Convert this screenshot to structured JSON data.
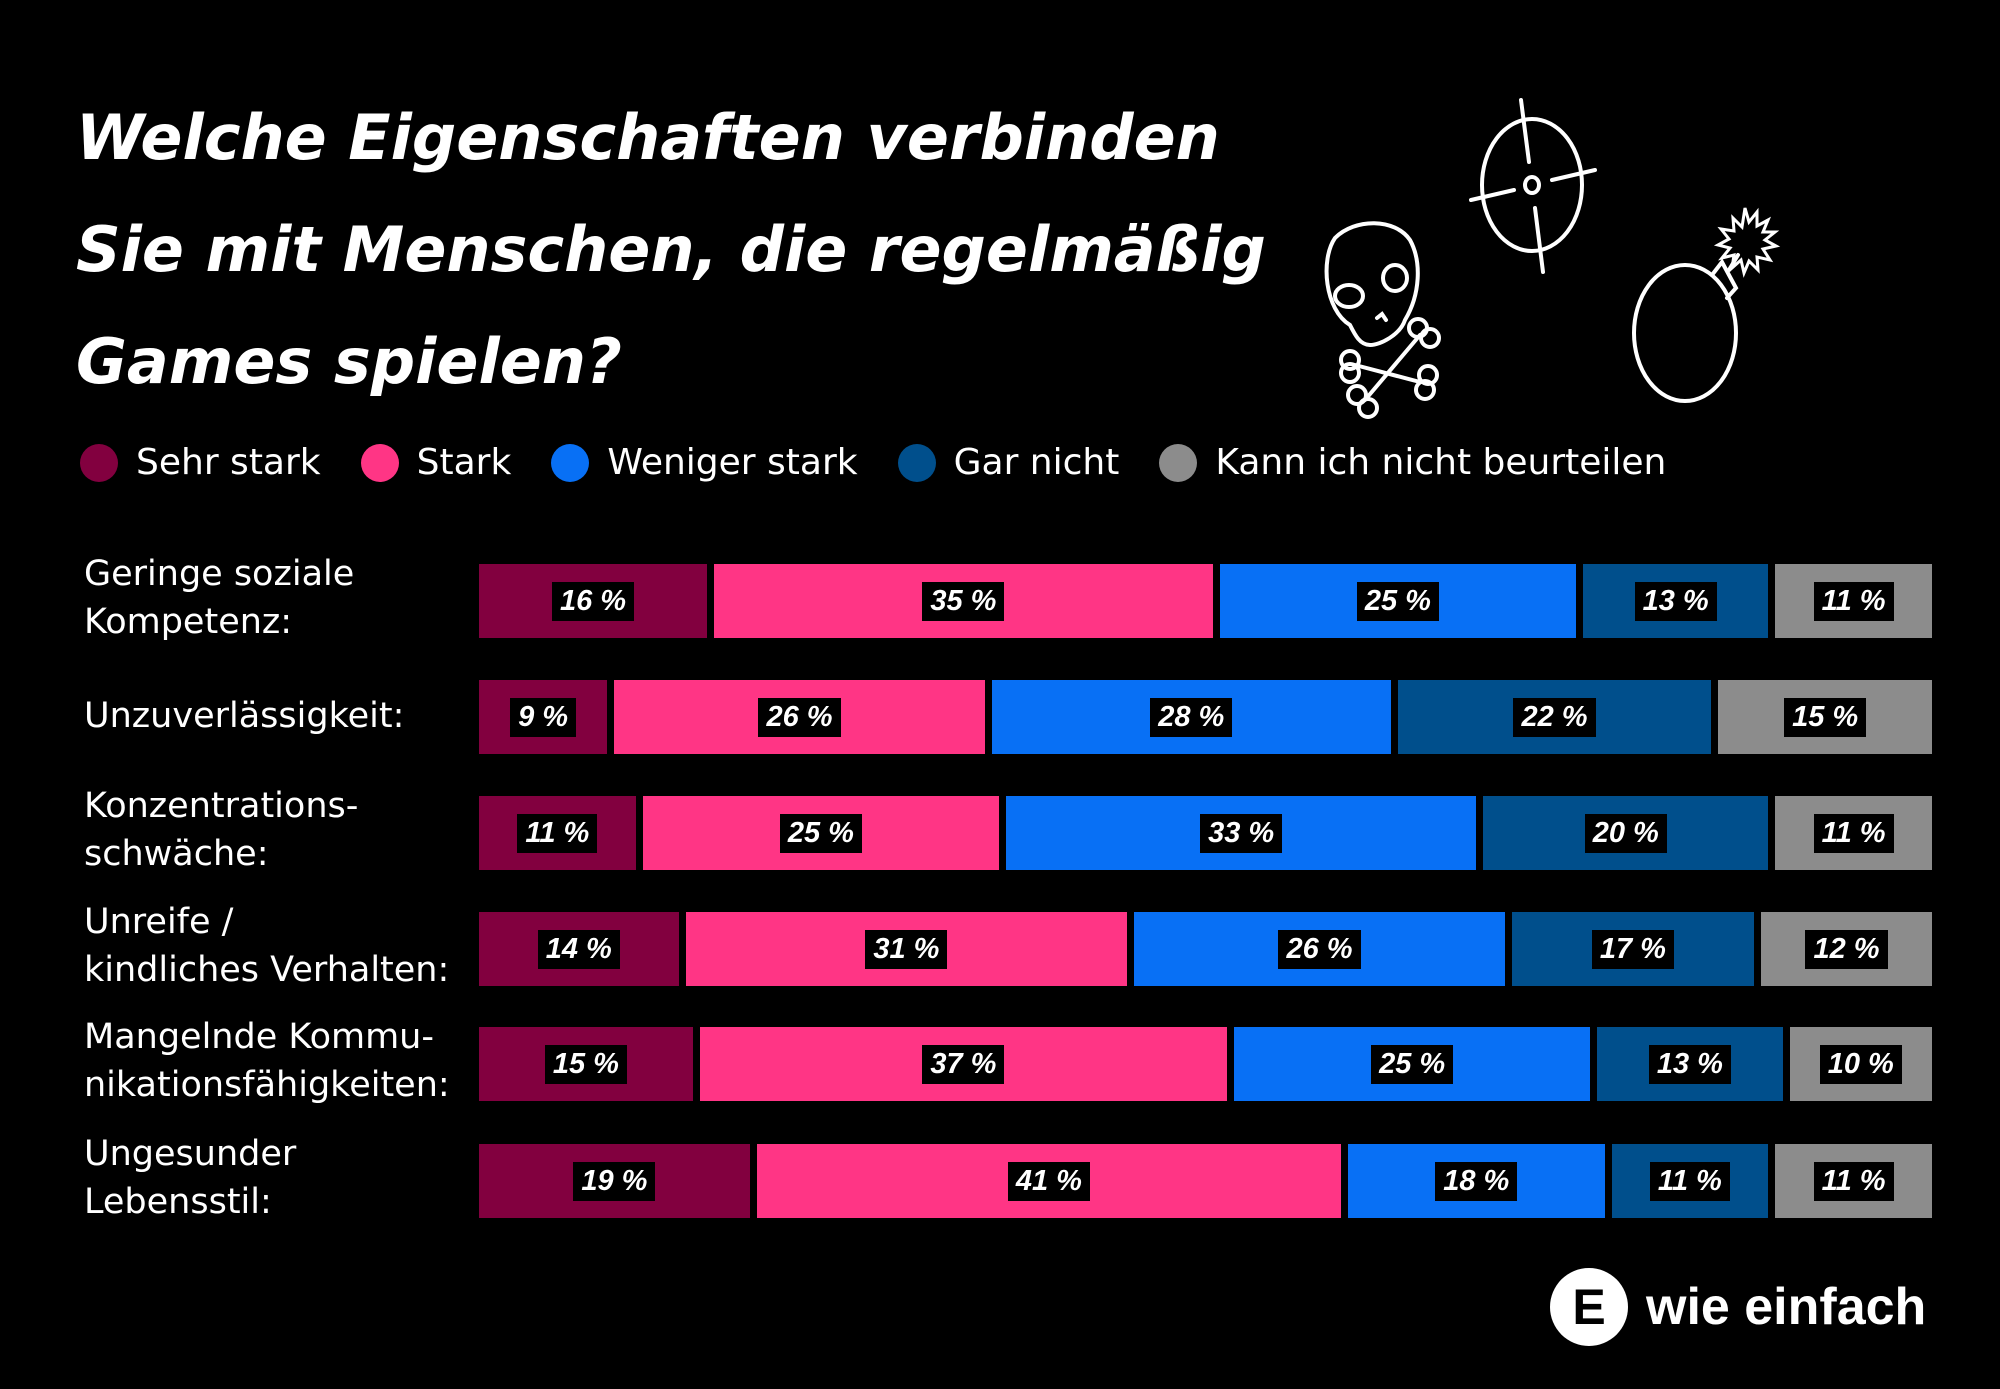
{
  "chart_data": {
    "type": "bar",
    "orientation": "horizontal-stacked",
    "title": "Welche Eigenschaften verbinden Sie mit Menschen, die regelmäßig Games spielen?",
    "title_lines": [
      "Welche Eigenschaften verbinden",
      "Sie mit Menschen, die regelmäßig",
      "Games spielen?"
    ],
    "categories": [
      [
        "Geringe soziale",
        "Kompetenz:"
      ],
      [
        "Unzuverlässigkeit:"
      ],
      [
        "Konzentrations-",
        "schwäche:"
      ],
      [
        "Unreife /",
        "kindliches Verhalten:"
      ],
      [
        "Mangelnde Kommu-",
        "nikationsfähigkeiten:"
      ],
      [
        "Ungesunder",
        "Lebensstil:"
      ]
    ],
    "series": [
      {
        "name": "Sehr stark",
        "color": "#82003f",
        "values": [
          16,
          9,
          11,
          14,
          15,
          19
        ]
      },
      {
        "name": "Stark",
        "color": "#ff3585",
        "values": [
          35,
          26,
          25,
          31,
          37,
          41
        ]
      },
      {
        "name": "Weniger stark",
        "color": "#0870f5",
        "values": [
          25,
          28,
          33,
          26,
          25,
          18
        ]
      },
      {
        "name": "Gar nicht",
        "color": "#004f8c",
        "values": [
          13,
          22,
          20,
          17,
          13,
          11
        ]
      },
      {
        "name": "Kann ich nicht beurteilen",
        "color": "#8c8c8c",
        "values": [
          11,
          15,
          11,
          12,
          10,
          11
        ]
      }
    ],
    "value_suffix": " %",
    "legend_position": "top",
    "grid": false
  },
  "icons": [
    "skull-crossbones-icon",
    "crosshair-icon",
    "bomb-icon"
  ],
  "logo": {
    "mark": "E",
    "text": "wie einfach"
  },
  "background": "#000000"
}
